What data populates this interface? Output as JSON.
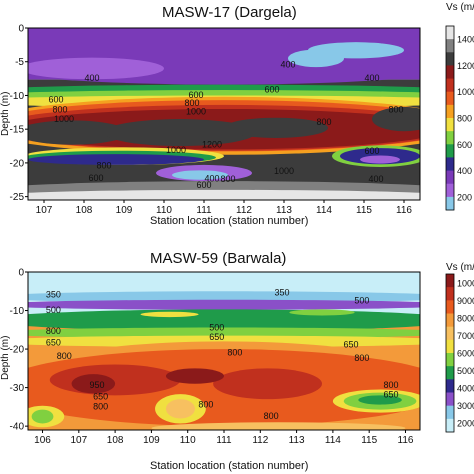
{
  "chart_data": [
    {
      "type": "heatmap",
      "title": "MASW-17 (Dargela)",
      "xlabel": "Station location (station number)",
      "ylabel": "Depth (m)",
      "xlim": [
        106.6,
        116.4
      ],
      "ylim": [
        -25.5,
        0
      ],
      "xticks": [
        "107",
        "108",
        "109",
        "110",
        "111",
        "112",
        "113",
        "114",
        "115",
        "116"
      ],
      "yticks": [
        "0",
        "-5",
        "-10",
        "-15",
        "-20",
        "-25"
      ],
      "colorbar": {
        "label": "Vs (m/s)",
        "ticks": [
          "1400",
          "1200",
          "1000",
          "800",
          "600",
          "400",
          "200"
        ],
        "colors": [
          "#e6e6e6",
          "#808080",
          "#3c3c3c",
          "#8b1a1a",
          "#c0301e",
          "#e85a1e",
          "#f5a020",
          "#f0e040",
          "#80d040",
          "#1f9b4a",
          "#2e2a8c",
          "#7a3ab8",
          "#a060d8",
          "#88c8e8"
        ]
      },
      "contour_labels": [
        {
          "text": "400",
          "x": 108.2,
          "y": -7.5
        },
        {
          "text": "400",
          "x": 113.1,
          "y": -5.5
        },
        {
          "text": "400",
          "x": 115.2,
          "y": -7.5
        },
        {
          "text": "600",
          "x": 107.3,
          "y": -10.7
        },
        {
          "text": "800",
          "x": 107.4,
          "y": -12.2
        },
        {
          "text": "1000",
          "x": 107.5,
          "y": -13.6
        },
        {
          "text": "600",
          "x": 110.8,
          "y": -10.0
        },
        {
          "text": "800",
          "x": 110.7,
          "y": -11.2
        },
        {
          "text": "1000",
          "x": 110.8,
          "y": -12.5
        },
        {
          "text": "600",
          "x": 112.7,
          "y": -9.2
        },
        {
          "text": "800",
          "x": 114.0,
          "y": -14.0
        },
        {
          "text": "800",
          "x": 115.8,
          "y": -12.2
        },
        {
          "text": "1200",
          "x": 111.2,
          "y": -17.4
        },
        {
          "text": "1000",
          "x": 110.3,
          "y": -18.2
        },
        {
          "text": "800",
          "x": 108.5,
          "y": -20.5
        },
        {
          "text": "600",
          "x": 108.3,
          "y": -22.3
        },
        {
          "text": "1000",
          "x": 113.0,
          "y": -21.3
        },
        {
          "text": "400",
          "x": 111.2,
          "y": -22.4
        },
        {
          "text": "600",
          "x": 111.0,
          "y": -23.4
        },
        {
          "text": "800",
          "x": 111.6,
          "y": -22.5
        },
        {
          "text": "600",
          "x": 115.2,
          "y": -18.3
        },
        {
          "text": "400",
          "x": 115.3,
          "y": -22.5
        }
      ]
    },
    {
      "type": "heatmap",
      "title": "MASW-59 (Barwala)",
      "xlabel": "Station location (station number)",
      "ylabel": "Depth (m)",
      "xlim": [
        105.6,
        116.4
      ],
      "ylim": [
        -41,
        0
      ],
      "xticks": [
        "106",
        "107",
        "108",
        "109",
        "110",
        "111",
        "112",
        "113",
        "114",
        "115",
        "116"
      ],
      "yticks": [
        "0",
        "-10",
        "-20",
        "-30",
        "-40"
      ],
      "colorbar": {
        "label": "Vs (m/s)",
        "ticks": [
          "1000",
          "9000",
          "8000",
          "7000",
          "6000",
          "5000",
          "4000",
          "3000",
          "2000"
        ],
        "colors": [
          "#8b1a1a",
          "#c0301e",
          "#e85a1e",
          "#f39a3a",
          "#f7c060",
          "#f0e040",
          "#80d040",
          "#1f9b4a",
          "#2e2a8c",
          "#8a50c8",
          "#88c8e8",
          "#c8eef8"
        ]
      },
      "contour_labels": [
        {
          "text": "350",
          "x": 106.3,
          "y": -6.0
        },
        {
          "text": "500",
          "x": 106.3,
          "y": -10.0
        },
        {
          "text": "350",
          "x": 112.6,
          "y": -5.5
        },
        {
          "text": "500",
          "x": 114.8,
          "y": -7.5
        },
        {
          "text": "800",
          "x": 106.3,
          "y": -15.5
        },
        {
          "text": "650",
          "x": 106.3,
          "y": -18.5
        },
        {
          "text": "800",
          "x": 106.6,
          "y": -22.0
        },
        {
          "text": "500",
          "x": 110.8,
          "y": -14.5
        },
        {
          "text": "650",
          "x": 110.8,
          "y": -17.0
        },
        {
          "text": "800",
          "x": 111.3,
          "y": -21.0
        },
        {
          "text": "650",
          "x": 114.5,
          "y": -19.0
        },
        {
          "text": "800",
          "x": 114.8,
          "y": -22.5
        },
        {
          "text": "950",
          "x": 107.5,
          "y": -29.5
        },
        {
          "text": "650",
          "x": 107.6,
          "y": -32.5
        },
        {
          "text": "800",
          "x": 107.6,
          "y": -35.0
        },
        {
          "text": "800",
          "x": 110.5,
          "y": -34.5
        },
        {
          "text": "800",
          "x": 112.3,
          "y": -37.5
        },
        {
          "text": "800",
          "x": 115.6,
          "y": -29.5
        },
        {
          "text": "650",
          "x": 115.6,
          "y": -32.0
        }
      ]
    }
  ]
}
